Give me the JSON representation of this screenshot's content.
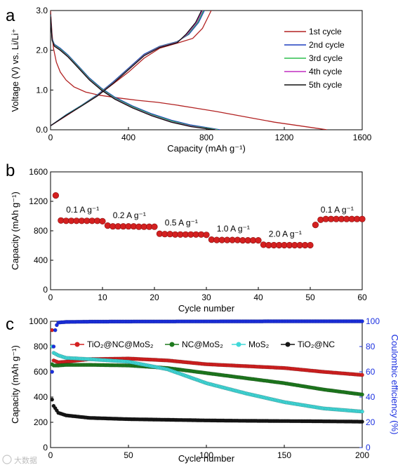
{
  "panels": {
    "a": "a",
    "b": "b",
    "c": "c"
  },
  "chart_data": [
    {
      "id": "a",
      "type": "line",
      "xlabel": "Capacity (mAh g⁻¹)",
      "ylabel": "Voltage (V) vs. Li/Li⁺",
      "xlim": [
        0,
        1600
      ],
      "ylim": [
        0,
        3.0
      ],
      "xticks": [
        "0",
        "400",
        "800",
        "1200",
        "1600"
      ],
      "yticks": [
        "0.0",
        "1.0",
        "2.0",
        "3.0"
      ],
      "legend_position": "top-right",
      "series": [
        {
          "name": "1st cycle",
          "color": "#b22222",
          "discharge": [
            [
              0,
              3.0
            ],
            [
              4,
              2.7
            ],
            [
              8,
              2.4
            ],
            [
              15,
              2.05
            ],
            [
              30,
              1.7
            ],
            [
              50,
              1.45
            ],
            [
              80,
              1.25
            ],
            [
              120,
              1.08
            ],
            [
              180,
              0.95
            ],
            [
              250,
              0.87
            ],
            [
              350,
              0.8
            ],
            [
              450,
              0.74
            ],
            [
              550,
              0.69
            ],
            [
              650,
              0.62
            ],
            [
              750,
              0.54
            ],
            [
              850,
              0.46
            ],
            [
              950,
              0.37
            ],
            [
              1050,
              0.28
            ],
            [
              1150,
              0.19
            ],
            [
              1250,
              0.12
            ],
            [
              1350,
              0.05
            ],
            [
              1420,
              0.0
            ]
          ],
          "charge": [
            [
              0,
              0.1
            ],
            [
              80,
              0.35
            ],
            [
              160,
              0.6
            ],
            [
              240,
              0.85
            ],
            [
              320,
              1.15
            ],
            [
              400,
              1.45
            ],
            [
              480,
              1.8
            ],
            [
              560,
              2.05
            ],
            [
              650,
              2.18
            ],
            [
              730,
              2.3
            ],
            [
              780,
              2.55
            ],
            [
              810,
              2.85
            ],
            [
              825,
              3.0
            ]
          ]
        },
        {
          "name": "2nd cycle",
          "color": "#1f3fbf",
          "discharge": [
            [
              0,
              2.9
            ],
            [
              8,
              2.3
            ],
            [
              20,
              2.15
            ],
            [
              50,
              2.05
            ],
            [
              90,
              1.88
            ],
            [
              140,
              1.62
            ],
            [
              200,
              1.3
            ],
            [
              260,
              1.05
            ],
            [
              330,
              0.82
            ],
            [
              420,
              0.6
            ],
            [
              520,
              0.4
            ],
            [
              620,
              0.24
            ],
            [
              720,
              0.12
            ],
            [
              820,
              0.04
            ],
            [
              870,
              0.0
            ]
          ],
          "charge": [
            [
              0,
              0.1
            ],
            [
              80,
              0.38
            ],
            [
              160,
              0.62
            ],
            [
              240,
              0.88
            ],
            [
              320,
              1.2
            ],
            [
              400,
              1.55
            ],
            [
              480,
              1.9
            ],
            [
              560,
              2.1
            ],
            [
              650,
              2.22
            ],
            [
              710,
              2.4
            ],
            [
              760,
              2.7
            ],
            [
              790,
              3.0
            ]
          ]
        },
        {
          "name": "3rd cycle",
          "color": "#2fbf4f",
          "discharge": [
            [
              0,
              2.88
            ],
            [
              8,
              2.28
            ],
            [
              20,
              2.13
            ],
            [
              50,
              2.03
            ],
            [
              90,
              1.86
            ],
            [
              140,
              1.6
            ],
            [
              200,
              1.28
            ],
            [
              260,
              1.03
            ],
            [
              330,
              0.8
            ],
            [
              420,
              0.58
            ],
            [
              520,
              0.38
            ],
            [
              620,
              0.22
            ],
            [
              720,
              0.1
            ],
            [
              820,
              0.03
            ],
            [
              860,
              0.0
            ]
          ],
          "charge": [
            [
              0,
              0.1
            ],
            [
              80,
              0.37
            ],
            [
              160,
              0.61
            ],
            [
              240,
              0.87
            ],
            [
              320,
              1.18
            ],
            [
              400,
              1.53
            ],
            [
              480,
              1.88
            ],
            [
              560,
              2.09
            ],
            [
              650,
              2.21
            ],
            [
              705,
              2.4
            ],
            [
              755,
              2.7
            ],
            [
              785,
              3.0
            ]
          ]
        },
        {
          "name": "4th cycle",
          "color": "#c02fc0",
          "discharge": [
            [
              0,
              2.86
            ],
            [
              8,
              2.26
            ],
            [
              20,
              2.11
            ],
            [
              50,
              2.01
            ],
            [
              90,
              1.84
            ],
            [
              140,
              1.58
            ],
            [
              200,
              1.26
            ],
            [
              260,
              1.01
            ],
            [
              330,
              0.78
            ],
            [
              420,
              0.56
            ],
            [
              520,
              0.36
            ],
            [
              620,
              0.2
            ],
            [
              720,
              0.09
            ],
            [
              815,
              0.02
            ],
            [
              850,
              0.0
            ]
          ],
          "charge": [
            [
              0,
              0.1
            ],
            [
              80,
              0.36
            ],
            [
              160,
              0.6
            ],
            [
              240,
              0.86
            ],
            [
              320,
              1.17
            ],
            [
              400,
              1.52
            ],
            [
              480,
              1.87
            ],
            [
              560,
              2.08
            ],
            [
              650,
              2.2
            ],
            [
              700,
              2.4
            ],
            [
              750,
              2.7
            ],
            [
              780,
              3.0
            ]
          ]
        },
        {
          "name": "5th cycle",
          "color": "#111111",
          "discharge": [
            [
              0,
              2.85
            ],
            [
              8,
              2.25
            ],
            [
              20,
              2.1
            ],
            [
              50,
              2.0
            ],
            [
              90,
              1.83
            ],
            [
              140,
              1.57
            ],
            [
              200,
              1.25
            ],
            [
              260,
              1.0
            ],
            [
              330,
              0.77
            ],
            [
              420,
              0.55
            ],
            [
              520,
              0.35
            ],
            [
              620,
              0.19
            ],
            [
              720,
              0.08
            ],
            [
              810,
              0.02
            ],
            [
              845,
              0.0
            ]
          ],
          "charge": [
            [
              0,
              0.1
            ],
            [
              80,
              0.36
            ],
            [
              160,
              0.6
            ],
            [
              240,
              0.85
            ],
            [
              320,
              1.16
            ],
            [
              400,
              1.51
            ],
            [
              480,
              1.86
            ],
            [
              560,
              2.07
            ],
            [
              650,
              2.19
            ],
            [
              695,
              2.4
            ],
            [
              745,
              2.7
            ],
            [
              775,
              3.0
            ]
          ]
        }
      ]
    },
    {
      "id": "b",
      "type": "scatter",
      "xlabel": "Cycle number",
      "ylabel": "Capacity (mAh g⁻¹)",
      "xlim": [
        0,
        60
      ],
      "ylim": [
        0,
        1600
      ],
      "xticks": [
        "0",
        "10",
        "20",
        "30",
        "40",
        "50",
        "60"
      ],
      "yticks": [
        "0",
        "400",
        "800",
        "1200",
        "1600"
      ],
      "marker_color": "#d42020",
      "annotations": [
        {
          "text": "0.1 A g⁻¹",
          "x": 3,
          "y": 1050
        },
        {
          "text": "0.2 A g⁻¹",
          "x": 12,
          "y": 970
        },
        {
          "text": "0.5 A g⁻¹",
          "x": 22,
          "y": 870
        },
        {
          "text": "1.0 A g⁻¹",
          "x": 32,
          "y": 790
        },
        {
          "text": "2.0 A g⁻¹",
          "x": 42,
          "y": 720
        },
        {
          "text": "0.1 A g⁻¹",
          "x": 52,
          "y": 1050
        }
      ],
      "x": [
        1,
        2,
        3,
        4,
        5,
        6,
        7,
        8,
        9,
        10,
        11,
        12,
        13,
        14,
        15,
        16,
        17,
        18,
        19,
        20,
        21,
        22,
        23,
        24,
        25,
        26,
        27,
        28,
        29,
        30,
        31,
        32,
        33,
        34,
        35,
        36,
        37,
        38,
        39,
        40,
        41,
        42,
        43,
        44,
        45,
        46,
        47,
        48,
        49,
        50,
        51,
        52,
        53,
        54,
        55,
        56,
        57,
        58,
        59,
        60
      ],
      "y": [
        1280,
        940,
        935,
        935,
        935,
        935,
        935,
        935,
        935,
        930,
        870,
        860,
        860,
        860,
        860,
        860,
        855,
        855,
        855,
        855,
        760,
        755,
        755,
        750,
        750,
        750,
        750,
        750,
        750,
        745,
        680,
        675,
        675,
        675,
        675,
        675,
        670,
        670,
        670,
        670,
        610,
        605,
        605,
        605,
        605,
        605,
        605,
        605,
        605,
        605,
        880,
        950,
        960,
        960,
        960,
        960,
        960,
        960,
        960,
        960
      ]
    },
    {
      "id": "c",
      "type": "scatter",
      "xlabel": "Cycle number",
      "ylabel": "Capacity (mAh g⁻¹)",
      "y2label": "Coulombic efficiency (%)",
      "xlim": [
        0,
        200
      ],
      "ylim": [
        0,
        1000
      ],
      "y2lim": [
        0,
        100
      ],
      "xticks": [
        "0",
        "50",
        "100",
        "150",
        "200"
      ],
      "yticks": [
        "0",
        "200",
        "400",
        "600",
        "800",
        "1000"
      ],
      "y2ticks": [
        "0",
        "20",
        "40",
        "60",
        "80",
        "100"
      ],
      "legend_position": "top",
      "series": [
        {
          "name": "TiO₂@NC@MoS₂",
          "color": "#d42020",
          "points": [
            [
              1,
              930
            ],
            [
              2,
              690
            ],
            [
              5,
              675
            ],
            [
              10,
              680
            ],
            [
              25,
              700
            ],
            [
              50,
              705
            ],
            [
              75,
              690
            ],
            [
              100,
              660
            ],
            [
              125,
              645
            ],
            [
              150,
              630
            ],
            [
              175,
              600
            ],
            [
              200,
              575
            ]
          ]
        },
        {
          "name": "NC@MoS₂",
          "color": "#1e7a1e",
          "points": [
            [
              1,
              660
            ],
            [
              2,
              650
            ],
            [
              5,
              650
            ],
            [
              10,
              655
            ],
            [
              25,
              655
            ],
            [
              50,
              650
            ],
            [
              75,
              630
            ],
            [
              100,
              590
            ],
            [
              125,
              550
            ],
            [
              150,
              510
            ],
            [
              175,
              460
            ],
            [
              200,
              420
            ]
          ]
        },
        {
          "name": "MoS₂",
          "color": "#40d8d8",
          "points": [
            [
              1,
              800
            ],
            [
              2,
              750
            ],
            [
              5,
              730
            ],
            [
              10,
              710
            ],
            [
              25,
              700
            ],
            [
              50,
              680
            ],
            [
              75,
              620
            ],
            [
              100,
              510
            ],
            [
              125,
              430
            ],
            [
              150,
              360
            ],
            [
              175,
              310
            ],
            [
              200,
              285
            ]
          ]
        },
        {
          "name": "TiO₂@NC",
          "color": "#151515",
          "points": [
            [
              1,
              380
            ],
            [
              2,
              330
            ],
            [
              5,
              275
            ],
            [
              10,
              255
            ],
            [
              25,
              235
            ],
            [
              50,
              225
            ],
            [
              75,
              220
            ],
            [
              100,
              215
            ],
            [
              125,
              212
            ],
            [
              150,
              210
            ],
            [
              175,
              208
            ],
            [
              200,
              205
            ]
          ]
        },
        {
          "name": "Coulombic efficiency",
          "color": "#1a2fe0",
          "points": [
            [
              1,
              60
            ],
            [
              2,
              80
            ],
            [
              3,
              93
            ],
            [
              4,
              97
            ],
            [
              5,
              99
            ],
            [
              10,
              99.5
            ],
            [
              25,
              99.7
            ],
            [
              50,
              99.8
            ],
            [
              100,
              99.9
            ],
            [
              150,
              100
            ],
            [
              200,
              100
            ]
          ]
        }
      ]
    }
  ],
  "watermark": "大数据"
}
